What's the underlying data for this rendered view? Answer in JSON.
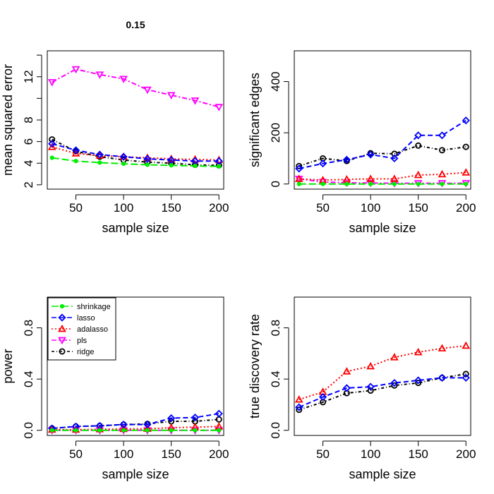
{
  "page_title": "0.15",
  "colors": {
    "shrinkage": "#00ee00",
    "lasso": "#0000ff",
    "adalasso": "#ff0000",
    "pls": "#ff00ff",
    "ridge": "#000000"
  },
  "legend": [
    "shrinkage",
    "lasso",
    "adalasso",
    "pls",
    "ridge"
  ],
  "chart_data": [
    {
      "type": "line",
      "title": "0.15",
      "xlabel": "sample size",
      "ylabel": "mean squared error",
      "x": [
        25,
        50,
        75,
        100,
        125,
        150,
        175,
        200
      ],
      "xlim": [
        20,
        205
      ],
      "ylim": [
        1.6,
        14.4
      ],
      "xticks": [
        "50",
        "100",
        "150",
        "200"
      ],
      "yticks": [
        "2",
        "4",
        "6",
        "8",
        "12"
      ],
      "series": [
        {
          "name": "shrinkage",
          "values": [
            4.5,
            4.2,
            4.05,
            3.95,
            3.85,
            3.8,
            3.75,
            3.7
          ]
        },
        {
          "name": "lasso",
          "values": [
            5.8,
            5.2,
            4.8,
            4.6,
            4.4,
            4.3,
            4.2,
            4.2
          ]
        },
        {
          "name": "adalasso",
          "values": [
            5.5,
            4.9,
            4.7,
            4.6,
            4.5,
            4.4,
            4.35,
            4.3
          ]
        },
        {
          "name": "pls",
          "values": [
            11.5,
            12.7,
            12.2,
            11.8,
            10.8,
            10.3,
            9.8,
            9.2
          ]
        },
        {
          "name": "ridge",
          "values": [
            6.2,
            5.1,
            4.6,
            4.3,
            4.1,
            4.0,
            3.85,
            3.8
          ]
        }
      ]
    },
    {
      "type": "line",
      "title": "",
      "xlabel": "sample size",
      "ylabel": "significant edges",
      "x": [
        25,
        50,
        75,
        100,
        125,
        150,
        175,
        200
      ],
      "xlim": [
        20,
        205
      ],
      "ylim": [
        -20,
        520
      ],
      "xticks": [
        "50",
        "100",
        "150",
        "200"
      ],
      "yticks": [
        "0",
        "200",
        "400"
      ],
      "series": [
        {
          "name": "shrinkage",
          "values": [
            0,
            0,
            0,
            0,
            0,
            0,
            0,
            0
          ]
        },
        {
          "name": "lasso",
          "values": [
            60,
            80,
            95,
            115,
            100,
            190,
            190,
            248
          ]
        },
        {
          "name": "adalasso",
          "values": [
            20,
            15,
            18,
            20,
            20,
            35,
            38,
            45
          ]
        },
        {
          "name": "pls",
          "values": [
            20,
            8,
            5,
            4,
            3,
            3,
            3,
            3
          ]
        },
        {
          "name": "ridge",
          "values": [
            70,
            100,
            90,
            120,
            118,
            150,
            132,
            145
          ]
        }
      ]
    },
    {
      "type": "line",
      "title": "",
      "xlabel": "sample size",
      "ylabel": "power",
      "x": [
        25,
        50,
        75,
        100,
        125,
        150,
        175,
        200
      ],
      "xlim": [
        20,
        205
      ],
      "ylim": [
        -0.04,
        1.04
      ],
      "xticks": [
        "50",
        "100",
        "150",
        "200"
      ],
      "yticks": [
        "0.0",
        "0.4",
        "0.8"
      ],
      "series": [
        {
          "name": "shrinkage",
          "values": [
            0.0,
            0.0,
            0.0,
            0.0,
            0.0,
            0.0,
            0.0,
            0.0
          ]
        },
        {
          "name": "lasso",
          "values": [
            0.015,
            0.03,
            0.035,
            0.045,
            0.045,
            0.095,
            0.1,
            0.13
          ]
        },
        {
          "name": "adalasso",
          "values": [
            0.005,
            0.005,
            0.008,
            0.01,
            0.012,
            0.02,
            0.025,
            0.03
          ]
        },
        {
          "name": "pls",
          "values": [
            0.0,
            0.0,
            0.0,
            0.0,
            0.0,
            0.0,
            0.0,
            0.0
          ]
        },
        {
          "name": "ridge",
          "values": [
            0.015,
            0.03,
            0.035,
            0.045,
            0.05,
            0.07,
            0.07,
            0.085
          ]
        }
      ]
    },
    {
      "type": "line",
      "title": "",
      "xlabel": "sample size",
      "ylabel": "true discovery rate",
      "x": [
        25,
        50,
        75,
        100,
        125,
        150,
        175,
        200
      ],
      "xlim": [
        20,
        205
      ],
      "ylim": [
        -0.04,
        1.04
      ],
      "xticks": [
        "50",
        "100",
        "150",
        "200"
      ],
      "yticks": [
        "0.0",
        "0.4",
        "0.8"
      ],
      "series": [
        {
          "name": "lasso",
          "values": [
            0.18,
            0.26,
            0.33,
            0.34,
            0.37,
            0.39,
            0.41,
            0.41
          ]
        },
        {
          "name": "adalasso",
          "values": [
            0.24,
            0.3,
            0.46,
            0.5,
            0.57,
            0.61,
            0.64,
            0.66
          ]
        },
        {
          "name": "ridge",
          "values": [
            0.16,
            0.22,
            0.29,
            0.31,
            0.35,
            0.37,
            0.41,
            0.44
          ]
        }
      ]
    }
  ]
}
